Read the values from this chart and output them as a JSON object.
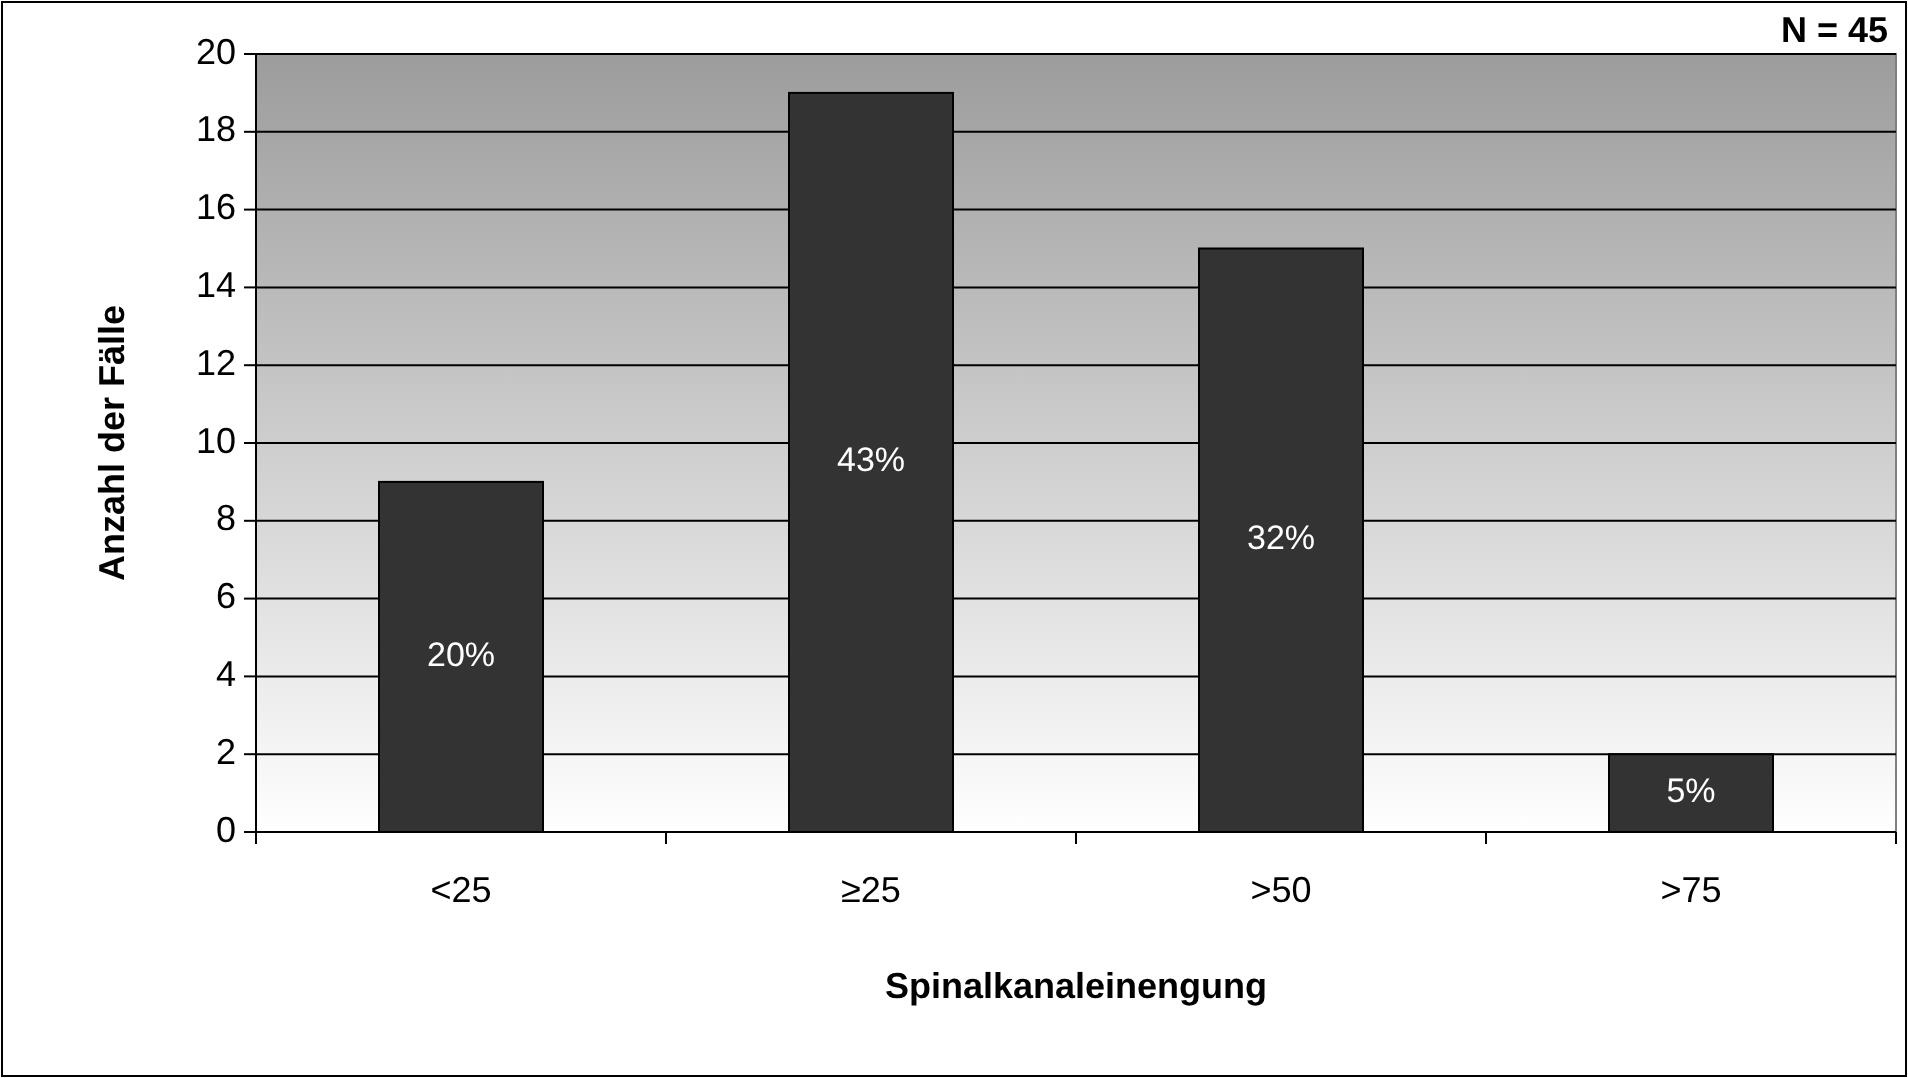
{
  "chart_data": {
    "type": "bar",
    "xlabel": "Spinalkanaleinengung",
    "ylabel": "Anzahl der Fälle",
    "categories": [
      "<25",
      "≥25",
      ">50",
      ">75"
    ],
    "values": [
      9,
      19,
      15,
      2
    ],
    "color": "#333333",
    "ylim": [
      0,
      20
    ],
    "yticks": [
      0,
      2,
      4,
      6,
      8,
      10,
      12,
      14,
      16,
      18,
      20
    ],
    "grid": "y",
    "annotations": [
      "N = 45",
      "20%",
      "43%",
      "32%",
      "5%"
    ]
  }
}
